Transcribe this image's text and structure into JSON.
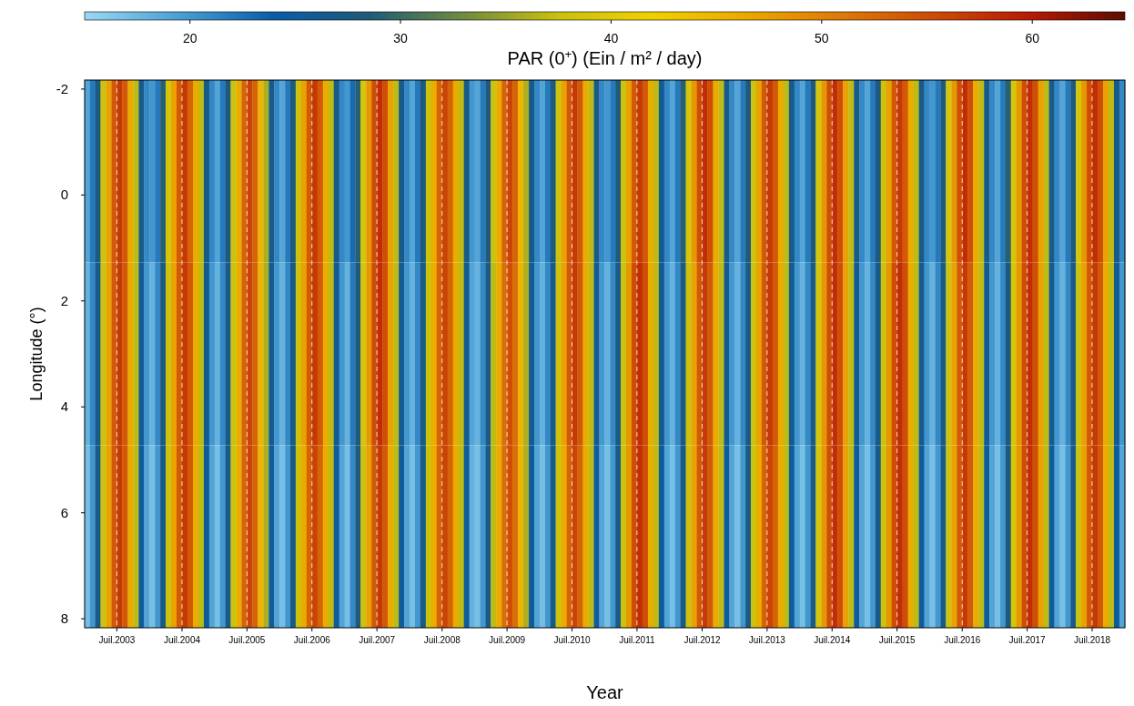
{
  "chart_data": {
    "type": "heatmap",
    "xlabel": "Year",
    "ylabel": "Longitude (°)",
    "clabel": "PAR (0$^{+}$) (Ein / m² / day)",
    "x": [
      "2003-01-16",
      "2003-02-15",
      "2003-03-16",
      "2003-04-16",
      "2003-05-16",
      "2003-06-16",
      "2003-07-16",
      "2003-08-16",
      "2003-09-16",
      "2003-10-16",
      "2003-11-16",
      "2003-12-16",
      "2004-01-16",
      "2004-02-15",
      "2004-03-16",
      "2004-04-16",
      "2004-05-16",
      "2004-06-16",
      "2004-07-16",
      "2004-08-16",
      "2004-09-16",
      "2004-10-16",
      "2004-11-16",
      "2004-12-16",
      "2005-01-16",
      "2005-02-15",
      "2005-03-16",
      "2005-04-16",
      "2005-05-16",
      "2005-06-16",
      "2005-07-16",
      "2005-08-16",
      "2005-09-16",
      "2005-10-16",
      "2005-11-16",
      "2005-12-16",
      "2006-01-16",
      "2006-02-15",
      "2006-03-16",
      "2006-04-16",
      "2006-05-16",
      "2006-06-16",
      "2006-07-16",
      "2006-08-16",
      "2006-09-16",
      "2006-10-16",
      "2006-11-16",
      "2006-12-16",
      "2007-01-16",
      "2007-02-15",
      "2007-03-16",
      "2007-04-16",
      "2007-05-16",
      "2007-06-16",
      "2007-07-16",
      "2007-08-16",
      "2007-09-16",
      "2007-10-16",
      "2007-11-16",
      "2007-12-16",
      "2008-01-16",
      "2008-02-15",
      "2008-03-16",
      "2008-04-16",
      "2008-05-16",
      "2008-06-16",
      "2008-07-16",
      "2008-08-16",
      "2008-09-16",
      "2008-10-16",
      "2008-11-16",
      "2008-12-16",
      "2009-01-16",
      "2009-02-15",
      "2009-03-16",
      "2009-04-16",
      "2009-05-16",
      "2009-06-16",
      "2009-07-16",
      "2009-08-16",
      "2009-09-16",
      "2009-10-16",
      "2009-11-16",
      "2009-12-16",
      "2010-01-16",
      "2010-02-15",
      "2010-03-16",
      "2010-04-16",
      "2010-05-16",
      "2010-06-16",
      "2010-07-16",
      "2010-08-16",
      "2010-09-16",
      "2010-10-16",
      "2010-11-16",
      "2010-12-16",
      "2011-01-16",
      "2011-02-15",
      "2011-03-16",
      "2011-04-16",
      "2011-05-16",
      "2011-06-16",
      "2011-07-16",
      "2011-08-16",
      "2011-09-16",
      "2011-10-16",
      "2011-11-16",
      "2011-12-16",
      "2012-01-16",
      "2012-02-15",
      "2012-03-16",
      "2012-04-16",
      "2012-05-16",
      "2012-06-16",
      "2012-07-16",
      "2012-08-16",
      "2012-09-16",
      "2012-10-16",
      "2012-11-16",
      "2012-12-16",
      "2013-01-16",
      "2013-02-15",
      "2013-03-16",
      "2013-04-16",
      "2013-05-16",
      "2013-06-16",
      "2013-07-16",
      "2013-08-16",
      "2013-09-16",
      "2013-10-16",
      "2013-11-16",
      "2013-12-16",
      "2014-01-16",
      "2014-02-15",
      "2014-03-16",
      "2014-04-16",
      "2014-05-16",
      "2014-06-16",
      "2014-07-16",
      "2014-08-16",
      "2014-09-16",
      "2014-10-16",
      "2014-11-16",
      "2014-12-16",
      "2015-01-16",
      "2015-02-15",
      "2015-03-16",
      "2015-04-16",
      "2015-05-16",
      "2015-06-16",
      "2015-07-16",
      "2015-08-16",
      "2015-09-16",
      "2015-10-16",
      "2015-11-16",
      "2015-12-16",
      "2016-01-16",
      "2016-02-15",
      "2016-03-16",
      "2016-04-16",
      "2016-05-16",
      "2016-06-16",
      "2016-07-16",
      "2016-08-16",
      "2016-09-16",
      "2016-10-16",
      "2016-11-16",
      "2016-12-16",
      "2017-01-16",
      "2017-02-15",
      "2017-03-16",
      "2017-04-16",
      "2017-05-16",
      "2017-06-16",
      "2017-07-16",
      "2017-08-16",
      "2017-09-16",
      "2017-10-16",
      "2017-11-16",
      "2017-12-16",
      "2018-01-16",
      "2018-02-15",
      "2018-03-16",
      "2018-04-16",
      "2018-05-16",
      "2018-06-16",
      "2018-07-16",
      "2018-08-16",
      "2018-09-16",
      "2018-10-16",
      "2018-11-16",
      "2018-12-16"
    ],
    "y": [
      -0.45,
      3.0,
      6.45
    ],
    "cells": [
      [
        19,
        22,
        28,
        38,
        47,
        54,
        57,
        54,
        46,
        37,
        27,
        21,
        20,
        22,
        29,
        39,
        47,
        54,
        57,
        53,
        46,
        37,
        27,
        21,
        19,
        22,
        28,
        38,
        46,
        53,
        56,
        53,
        45,
        36,
        27,
        21,
        19,
        22,
        28,
        38,
        47,
        54,
        57,
        54,
        46,
        37,
        27,
        21,
        20,
        23,
        29,
        39,
        48,
        55,
        58,
        55,
        47,
        37,
        27,
        21,
        19,
        22,
        28,
        38,
        46,
        53,
        56,
        53,
        46,
        37,
        27,
        20,
        19,
        22,
        28,
        38,
        46,
        53,
        56,
        53,
        45,
        36,
        27,
        21,
        19,
        22,
        28,
        38,
        47,
        54,
        57,
        54,
        46,
        37,
        27,
        21,
        20,
        22,
        28,
        38,
        47,
        54,
        57,
        54,
        46,
        37,
        26,
        21,
        19,
        22,
        29,
        39,
        48,
        55,
        58,
        55,
        46,
        37,
        27,
        21,
        19,
        22,
        28,
        38,
        47,
        54,
        57,
        54,
        46,
        37,
        27,
        21,
        19,
        22,
        28,
        39,
        48,
        55,
        58,
        55,
        47,
        37,
        27,
        21,
        19,
        22,
        28,
        38,
        47,
        54,
        57,
        54,
        46,
        37,
        27,
        21,
        20,
        22,
        28,
        39,
        48,
        55,
        58,
        55,
        46,
        37,
        27,
        21,
        19,
        22,
        29,
        39,
        48,
        55,
        58,
        55,
        47,
        37,
        27,
        21,
        19,
        22,
        28,
        39,
        48,
        55,
        58,
        55,
        47,
        37,
        27,
        21
      ],
      [
        18,
        21,
        27,
        38,
        47,
        54,
        57,
        54,
        46,
        37,
        26,
        20,
        18,
        21,
        28,
        38,
        47,
        54,
        57,
        54,
        46,
        37,
        26,
        20,
        18,
        21,
        27,
        38,
        46,
        53,
        56,
        53,
        45,
        36,
        26,
        20,
        18,
        21,
        27,
        38,
        47,
        54,
        57,
        54,
        46,
        37,
        26,
        20,
        18,
        22,
        28,
        39,
        48,
        55,
        58,
        55,
        47,
        37,
        26,
        20,
        18,
        21,
        27,
        38,
        46,
        53,
        56,
        53,
        46,
        37,
        26,
        19,
        18,
        21,
        27,
        37,
        46,
        52,
        55,
        52,
        45,
        36,
        26,
        20,
        18,
        21,
        27,
        38,
        47,
        54,
        57,
        54,
        46,
        37,
        26,
        20,
        18,
        21,
        27,
        38,
        48,
        55,
        58,
        55,
        46,
        37,
        26,
        20,
        18,
        21,
        28,
        38,
        47,
        54,
        57,
        54,
        46,
        37,
        26,
        20,
        18,
        21,
        27,
        38,
        47,
        54,
        57,
        54,
        46,
        37,
        26,
        20,
        18,
        21,
        27,
        39,
        48,
        55,
        58,
        55,
        47,
        37,
        26,
        20,
        18,
        21,
        27,
        38,
        48,
        55,
        58,
        55,
        46,
        37,
        26,
        20,
        18,
        21,
        27,
        38,
        47,
        54,
        57,
        54,
        46,
        37,
        26,
        20,
        18,
        21,
        28,
        39,
        48,
        55,
        58,
        55,
        47,
        37,
        26,
        20,
        18,
        21,
        27,
        38,
        47,
        54,
        57,
        54,
        46,
        37,
        26,
        20
      ],
      [
        17,
        20,
        27,
        38,
        47,
        54,
        57,
        54,
        46,
        37,
        25,
        19,
        17,
        20,
        27,
        38,
        47,
        54,
        57,
        54,
        46,
        37,
        25,
        19,
        17,
        20,
        27,
        38,
        46,
        53,
        56,
        53,
        45,
        36,
        25,
        19,
        17,
        20,
        27,
        38,
        46,
        53,
        56,
        53,
        46,
        37,
        25,
        19,
        17,
        21,
        28,
        38,
        47,
        54,
        57,
        54,
        46,
        37,
        25,
        19,
        17,
        20,
        27,
        38,
        46,
        53,
        56,
        53,
        46,
        37,
        25,
        18,
        17,
        20,
        27,
        37,
        46,
        52,
        55,
        52,
        45,
        36,
        25,
        19,
        17,
        20,
        27,
        38,
        46,
        53,
        56,
        53,
        46,
        37,
        25,
        19,
        17,
        20,
        27,
        38,
        48,
        55,
        58,
        55,
        46,
        37,
        25,
        19,
        17,
        20,
        27,
        38,
        47,
        54,
        57,
        54,
        46,
        37,
        25,
        19,
        17,
        20,
        27,
        38,
        46,
        53,
        56,
        53,
        46,
        37,
        25,
        19,
        17,
        20,
        27,
        39,
        48,
        55,
        58,
        55,
        47,
        37,
        25,
        19,
        17,
        20,
        27,
        38,
        48,
        55,
        58,
        55,
        46,
        37,
        25,
        19,
        17,
        20,
        27,
        38,
        47,
        54,
        57,
        54,
        46,
        37,
        25,
        19,
        17,
        20,
        28,
        39,
        48,
        55,
        58,
        55,
        47,
        37,
        25,
        19,
        17,
        20,
        27,
        38,
        47,
        54,
        57,
        54,
        46,
        37,
        25,
        19
      ]
    ],
    "xlim": [
      "2003-01",
      "2019-01"
    ],
    "xticks": [
      {
        "value": "2003-07",
        "label": "Juil.2003"
      },
      {
        "value": "2004-07",
        "label": "Juil.2004"
      },
      {
        "value": "2005-07",
        "label": "Juil.2005"
      },
      {
        "value": "2006-07",
        "label": "Juil.2006"
      },
      {
        "value": "2007-07",
        "label": "Juil.2007"
      },
      {
        "value": "2008-07",
        "label": "Juil.2008"
      },
      {
        "value": "2009-07",
        "label": "Juil.2009"
      },
      {
        "value": "2010-07",
        "label": "Juil.2010"
      },
      {
        "value": "2011-07",
        "label": "Juil.2011"
      },
      {
        "value": "2012-07",
        "label": "Juil.2012"
      },
      {
        "value": "2013-07",
        "label": "Juil.2013"
      },
      {
        "value": "2014-07",
        "label": "Juil.2014"
      },
      {
        "value": "2015-07",
        "label": "Juil.2015"
      },
      {
        "value": "2016-07",
        "label": "Juil.2016"
      },
      {
        "value": "2017-07",
        "label": "Juil.2017"
      },
      {
        "value": "2018-07",
        "label": "Juil.2018"
      }
    ],
    "ylim": [
      8.17,
      -2.17
    ],
    "yticks": [
      -2,
      0,
      2,
      4,
      6,
      8
    ],
    "clim": [
      15,
      64.4
    ],
    "cticks": [
      20,
      30,
      40,
      50,
      60
    ],
    "grid": "x"
  }
}
